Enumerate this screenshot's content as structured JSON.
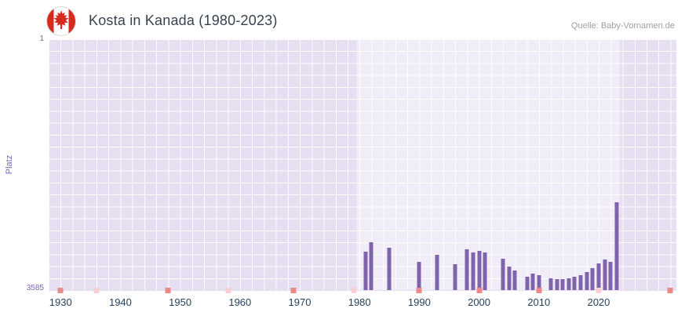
{
  "header": {
    "title": "Kosta in Kanada (1980-2023)",
    "source": "Quelle: Baby-Vornamen.de",
    "flag_icon": "canada-flag-icon"
  },
  "chart_data": {
    "type": "bar",
    "title": "Kosta in Kanada (1980-2023)",
    "xlabel": "",
    "ylabel": "Platz",
    "y_axis": {
      "top_label": "1",
      "bottom_label": "3585",
      "min": 1,
      "max": 3585,
      "inverted": true
    },
    "x_axis": {
      "min": 1928,
      "max": 2033,
      "ticks": [
        1930,
        1940,
        1950,
        1960,
        1970,
        1980,
        1990,
        2000,
        2010,
        2020
      ]
    },
    "highlight_band": {
      "from": 1979.5,
      "to": 2023.5
    },
    "bars": [
      {
        "year": 1981,
        "rank": 3040
      },
      {
        "year": 1982,
        "rank": 2900
      },
      {
        "year": 1985,
        "rank": 2980
      },
      {
        "year": 1990,
        "rank": 3180
      },
      {
        "year": 1993,
        "rank": 3080
      },
      {
        "year": 1996,
        "rank": 3210
      },
      {
        "year": 1998,
        "rank": 3000
      },
      {
        "year": 1999,
        "rank": 3050
      },
      {
        "year": 2000,
        "rank": 3020
      },
      {
        "year": 2001,
        "rank": 3050
      },
      {
        "year": 2004,
        "rank": 3140
      },
      {
        "year": 2005,
        "rank": 3250
      },
      {
        "year": 2006,
        "rank": 3310
      },
      {
        "year": 2008,
        "rank": 3390
      },
      {
        "year": 2009,
        "rank": 3350
      },
      {
        "year": 2010,
        "rank": 3370
      },
      {
        "year": 2012,
        "rank": 3420
      },
      {
        "year": 2013,
        "rank": 3430
      },
      {
        "year": 2014,
        "rank": 3425
      },
      {
        "year": 2015,
        "rank": 3415
      },
      {
        "year": 2016,
        "rank": 3400
      },
      {
        "year": 2017,
        "rank": 3370
      },
      {
        "year": 2018,
        "rank": 3330
      },
      {
        "year": 2019,
        "rank": 3270
      },
      {
        "year": 2020,
        "rank": 3200
      },
      {
        "year": 2021,
        "rank": 3150
      },
      {
        "year": 2022,
        "rank": 3180
      },
      {
        "year": 2023,
        "rank": 2330
      }
    ],
    "baseline_marks": [
      {
        "year": 1930,
        "shade": "strong"
      },
      {
        "year": 1936,
        "shade": "light"
      },
      {
        "year": 1948,
        "shade": "strong"
      },
      {
        "year": 1958,
        "shade": "light"
      },
      {
        "year": 1969,
        "shade": "strong"
      },
      {
        "year": 1979,
        "shade": "light"
      },
      {
        "year": 1990,
        "shade": "strong"
      },
      {
        "year": 2000,
        "shade": "strong"
      },
      {
        "year": 2010,
        "shade": "strong"
      },
      {
        "year": 2020,
        "shade": "light"
      },
      {
        "year": 2032,
        "shade": "strong"
      }
    ],
    "colors": {
      "bar": "#7f63ab",
      "band_light": "#f0ecf8",
      "band_dark": "#e5dff1",
      "grid": "rgba(255,255,255,0.9)",
      "mark_strong": "#ea8a8a",
      "mark_light": "#f8d0d4",
      "axis_text_purple": "#7d64b0",
      "year_text": "#26415e",
      "title_text": "#37424e",
      "source_text": "#9aa0a6",
      "flag_red": "#d52b1e"
    }
  }
}
